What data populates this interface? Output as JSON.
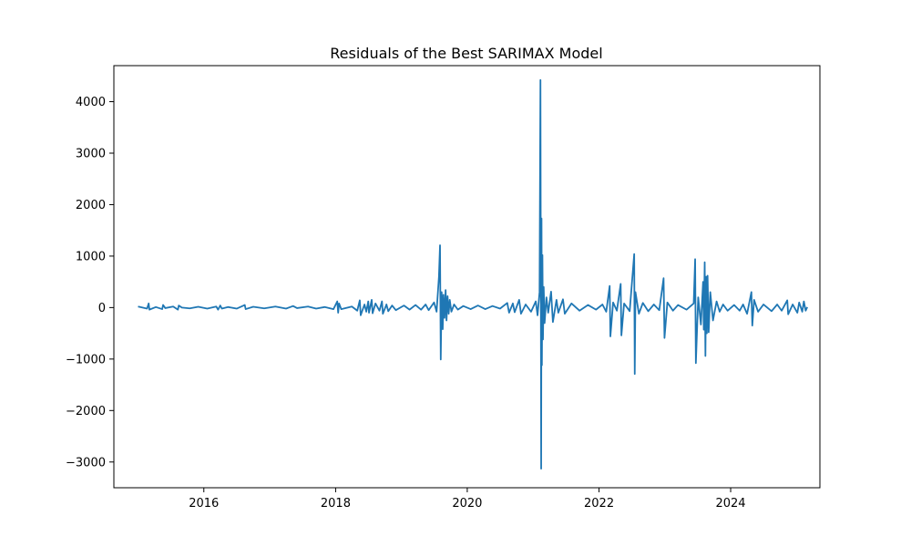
{
  "chart_data": {
    "type": "line",
    "title": "Residuals of the Best SARIMAX Model",
    "xlabel": "",
    "ylabel": "",
    "x_range": [
      "2014-08-20",
      "2025-05-10"
    ],
    "y_range": [
      -3500,
      4700
    ],
    "x_ticks": [
      {
        "value": "2016-01-01",
        "label": "2016"
      },
      {
        "value": "2018-01-01",
        "label": "2018"
      },
      {
        "value": "2020-01-01",
        "label": "2020"
      },
      {
        "value": "2022-01-01",
        "label": "2022"
      },
      {
        "value": "2024-01-01",
        "label": "2024"
      }
    ],
    "y_ticks": [
      {
        "value": 4000,
        "label": "4000"
      },
      {
        "value": 3000,
        "label": "3000"
      },
      {
        "value": 2000,
        "label": "2000"
      },
      {
        "value": 1000,
        "label": "1000"
      },
      {
        "value": 0,
        "label": "0"
      },
      {
        "value": -1000,
        "label": "−1000"
      },
      {
        "value": -2000,
        "label": "−2000"
      },
      {
        "value": -3000,
        "label": "−3000"
      }
    ],
    "grid": false,
    "legend": "none",
    "series": [
      {
        "color": "#1f77b4",
        "points": [
          [
            "2015-01-01",
            20
          ],
          [
            "2015-02-20",
            -20
          ],
          [
            "2015-03-01",
            80
          ],
          [
            "2015-03-05",
            -40
          ],
          [
            "2015-04-10",
            10
          ],
          [
            "2015-05-15",
            -30
          ],
          [
            "2015-05-20",
            50
          ],
          [
            "2015-06-01",
            -10
          ],
          [
            "2015-07-15",
            20
          ],
          [
            "2015-08-10",
            -40
          ],
          [
            "2015-08-15",
            40
          ],
          [
            "2015-09-01",
            0
          ],
          [
            "2015-10-15",
            -15
          ],
          [
            "2015-12-01",
            15
          ],
          [
            "2016-01-20",
            -20
          ],
          [
            "2016-03-10",
            20
          ],
          [
            "2016-03-20",
            -40
          ],
          [
            "2016-04-01",
            40
          ],
          [
            "2016-04-10",
            -20
          ],
          [
            "2016-05-15",
            10
          ],
          [
            "2016-07-01",
            -20
          ],
          [
            "2016-08-15",
            50
          ],
          [
            "2016-08-20",
            -30
          ],
          [
            "2016-10-01",
            15
          ],
          [
            "2016-12-01",
            -15
          ],
          [
            "2017-02-01",
            20
          ],
          [
            "2017-04-01",
            -20
          ],
          [
            "2017-05-10",
            30
          ],
          [
            "2017-06-01",
            -10
          ],
          [
            "2017-08-01",
            20
          ],
          [
            "2017-09-15",
            -20
          ],
          [
            "2017-11-01",
            10
          ],
          [
            "2017-12-20",
            -30
          ],
          [
            "2018-01-10",
            120
          ],
          [
            "2018-01-15",
            -100
          ],
          [
            "2018-01-20",
            80
          ],
          [
            "2018-02-01",
            -30
          ],
          [
            "2018-04-01",
            20
          ],
          [
            "2018-05-01",
            -60
          ],
          [
            "2018-05-15",
            140
          ],
          [
            "2018-05-20",
            -150
          ],
          [
            "2018-06-10",
            60
          ],
          [
            "2018-06-20",
            -80
          ],
          [
            "2018-07-01",
            120
          ],
          [
            "2018-07-05",
            -100
          ],
          [
            "2018-07-20",
            150
          ],
          [
            "2018-07-25",
            -110
          ],
          [
            "2018-08-10",
            80
          ],
          [
            "2018-09-01",
            -60
          ],
          [
            "2018-09-15",
            120
          ],
          [
            "2018-09-20",
            -120
          ],
          [
            "2018-10-10",
            60
          ],
          [
            "2018-10-20",
            -70
          ],
          [
            "2018-11-10",
            40
          ],
          [
            "2018-12-01",
            -50
          ],
          [
            "2019-01-15",
            40
          ],
          [
            "2019-02-15",
            -40
          ],
          [
            "2019-03-20",
            50
          ],
          [
            "2019-04-20",
            -40
          ],
          [
            "2019-05-15",
            60
          ],
          [
            "2019-06-01",
            -50
          ],
          [
            "2019-07-01",
            100
          ],
          [
            "2019-07-15",
            -80
          ],
          [
            "2019-07-28",
            600
          ],
          [
            "2019-08-03",
            1210
          ],
          [
            "2019-08-07",
            -1010
          ],
          [
            "2019-08-12",
            300
          ],
          [
            "2019-08-18",
            -420
          ],
          [
            "2019-08-22",
            250
          ],
          [
            "2019-08-28",
            -200
          ],
          [
            "2019-09-03",
            340
          ],
          [
            "2019-09-08",
            -250
          ],
          [
            "2019-09-14",
            220
          ],
          [
            "2019-09-20",
            -120
          ],
          [
            "2019-09-26",
            150
          ],
          [
            "2019-10-05",
            -80
          ],
          [
            "2019-10-20",
            60
          ],
          [
            "2019-11-10",
            -40
          ],
          [
            "2019-12-10",
            30
          ],
          [
            "2020-01-20",
            -30
          ],
          [
            "2020-03-01",
            40
          ],
          [
            "2020-04-10",
            -30
          ],
          [
            "2020-05-20",
            30
          ],
          [
            "2020-07-01",
            -20
          ],
          [
            "2020-08-10",
            90
          ],
          [
            "2020-08-20",
            -100
          ],
          [
            "2020-09-10",
            80
          ],
          [
            "2020-09-20",
            -90
          ],
          [
            "2020-10-15",
            150
          ],
          [
            "2020-10-25",
            -120
          ],
          [
            "2020-11-20",
            60
          ],
          [
            "2020-12-20",
            -80
          ],
          [
            "2021-01-15",
            120
          ],
          [
            "2021-01-25",
            -150
          ],
          [
            "2021-02-05",
            300
          ],
          [
            "2021-02-10",
            4420
          ],
          [
            "2021-02-14",
            -3130
          ],
          [
            "2021-02-16",
            1730
          ],
          [
            "2021-02-18",
            -1120
          ],
          [
            "2021-02-21",
            1020
          ],
          [
            "2021-02-24",
            -620
          ],
          [
            "2021-02-28",
            400
          ],
          [
            "2021-03-05",
            -300
          ],
          [
            "2021-03-15",
            200
          ],
          [
            "2021-03-25",
            -100
          ],
          [
            "2021-04-10",
            310
          ],
          [
            "2021-04-20",
            -280
          ],
          [
            "2021-05-10",
            150
          ],
          [
            "2021-05-20",
            -100
          ],
          [
            "2021-06-15",
            160
          ],
          [
            "2021-06-25",
            -120
          ],
          [
            "2021-08-01",
            80
          ],
          [
            "2021-09-15",
            -60
          ],
          [
            "2021-11-01",
            50
          ],
          [
            "2021-12-15",
            -40
          ],
          [
            "2022-01-20",
            60
          ],
          [
            "2022-02-10",
            -80
          ],
          [
            "2022-03-01",
            420
          ],
          [
            "2022-03-05",
            -560
          ],
          [
            "2022-03-20",
            100
          ],
          [
            "2022-04-10",
            -60
          ],
          [
            "2022-05-01",
            460
          ],
          [
            "2022-05-05",
            -540
          ],
          [
            "2022-05-20",
            80
          ],
          [
            "2022-06-20",
            -70
          ],
          [
            "2022-07-15",
            1040
          ],
          [
            "2022-07-18",
            -1290
          ],
          [
            "2022-07-22",
            300
          ],
          [
            "2022-08-10",
            -120
          ],
          [
            "2022-09-01",
            90
          ],
          [
            "2022-10-01",
            -70
          ],
          [
            "2022-11-01",
            60
          ],
          [
            "2022-12-01",
            -50
          ],
          [
            "2022-12-25",
            570
          ],
          [
            "2022-12-30",
            -590
          ],
          [
            "2023-01-15",
            100
          ],
          [
            "2023-02-15",
            -60
          ],
          [
            "2023-03-15",
            50
          ],
          [
            "2023-05-01",
            -40
          ],
          [
            "2023-06-10",
            80
          ],
          [
            "2023-06-18",
            940
          ],
          [
            "2023-06-22",
            -1080
          ],
          [
            "2023-07-05",
            200
          ],
          [
            "2023-07-20",
            -330
          ],
          [
            "2023-08-01",
            500
          ],
          [
            "2023-08-05",
            -430
          ],
          [
            "2023-08-10",
            880
          ],
          [
            "2023-08-14",
            -940
          ],
          [
            "2023-08-18",
            600
          ],
          [
            "2023-08-22",
            -500
          ],
          [
            "2023-08-26",
            620
          ],
          [
            "2023-09-01",
            -480
          ],
          [
            "2023-09-10",
            300
          ],
          [
            "2023-09-25",
            -250
          ],
          [
            "2023-10-15",
            120
          ],
          [
            "2023-11-01",
            -80
          ],
          [
            "2023-11-20",
            60
          ],
          [
            "2023-12-15",
            -60
          ],
          [
            "2024-01-20",
            50
          ],
          [
            "2024-02-20",
            -60
          ],
          [
            "2024-03-10",
            60
          ],
          [
            "2024-04-01",
            -120
          ],
          [
            "2024-04-25",
            300
          ],
          [
            "2024-04-30",
            -350
          ],
          [
            "2024-05-10",
            150
          ],
          [
            "2024-06-01",
            -80
          ],
          [
            "2024-07-01",
            60
          ],
          [
            "2024-08-15",
            -70
          ],
          [
            "2024-09-15",
            60
          ],
          [
            "2024-10-10",
            -60
          ],
          [
            "2024-11-10",
            140
          ],
          [
            "2024-11-15",
            -130
          ],
          [
            "2024-12-10",
            60
          ],
          [
            "2025-01-05",
            -100
          ],
          [
            "2025-01-15",
            100
          ],
          [
            "2025-02-01",
            -80
          ],
          [
            "2025-02-10",
            120
          ],
          [
            "2025-02-20",
            -60
          ],
          [
            "2025-03-01",
            10
          ]
        ]
      }
    ]
  }
}
